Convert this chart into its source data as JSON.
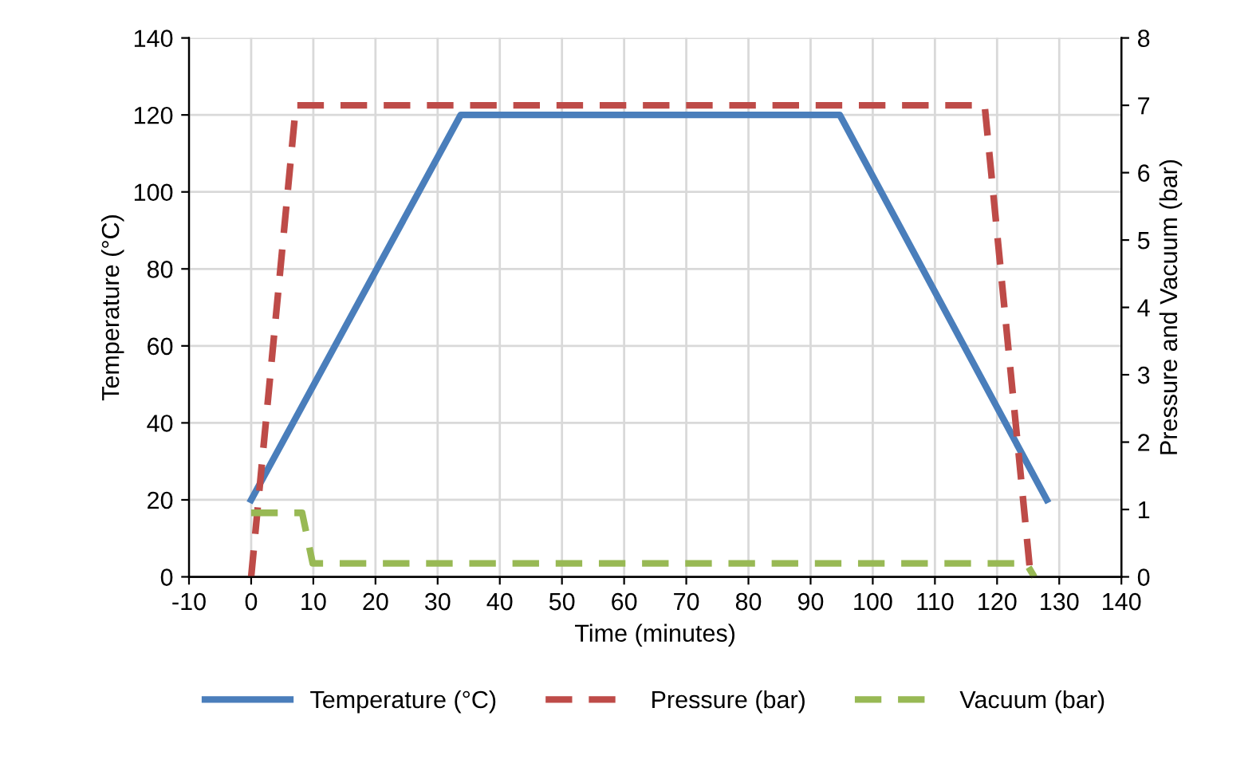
{
  "chart_data": {
    "type": "line",
    "xlabel": "Time (minutes)",
    "ylabel": "Temperature (°C)",
    "y2label": "Pressure and Vacuum (bar)",
    "xlim": [
      -10,
      140
    ],
    "xticks": [
      -10,
      0,
      10,
      20,
      30,
      40,
      50,
      60,
      70,
      80,
      90,
      100,
      110,
      120,
      130,
      140
    ],
    "ylim": [
      0,
      140
    ],
    "yticks": [
      0,
      20,
      40,
      60,
      80,
      100,
      120,
      140
    ],
    "y2lim": [
      0,
      8
    ],
    "y2ticks": [
      0,
      1,
      2,
      3,
      4,
      5,
      6,
      7,
      8
    ],
    "grid": true,
    "legend": "bottom",
    "series": [
      {
        "name": "Temperature (°C)",
        "color": "#4a7ebb",
        "line_style": "solid",
        "x": [
          0,
          33.7,
          94.7,
          128
        ],
        "values": [
          20,
          120,
          120,
          20
        ]
      },
      {
        "name": "Pressure (bar)",
        "color": "#be4b48",
        "line_style": "dashed",
        "axis": "y2",
        "x": [
          0,
          7.2,
          118,
          125.4
        ],
        "values": [
          0,
          7,
          7,
          0
        ]
      },
      {
        "name": "Vacuum (bar)",
        "color": "#98b954",
        "line_style": "dashed",
        "axis": "y2",
        "x": [
          0,
          8.2,
          9.9,
          124.7,
          126
        ],
        "values": [
          0.95,
          0.95,
          0.2,
          0.2,
          0
        ]
      }
    ]
  }
}
